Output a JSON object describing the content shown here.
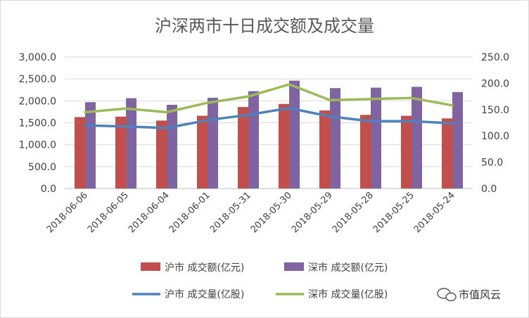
{
  "chart_data": {
    "type": "bar",
    "title": "沪深两市十日成交额及成交量",
    "categories": [
      "2018-06-06",
      "2018-06-05",
      "2018-06-04",
      "2018-06-01",
      "2018-05-31",
      "2018-05-30",
      "2018-05-29",
      "2018-05-28",
      "2018-05-25",
      "2018-05-24"
    ],
    "y_left": {
      "min": 0,
      "max": 3000,
      "step": 500,
      "ticks": [
        "0.0",
        "500.0",
        "1,000.0",
        "1,500.0",
        "2,000.0",
        "2,500.0",
        "3,000.0"
      ]
    },
    "y_right": {
      "min": 0,
      "max": 250,
      "step": 50,
      "ticks": [
        "0.0",
        "50.0",
        "100.0",
        "150.0",
        "200.0",
        "250.0"
      ]
    },
    "grid": true,
    "legend_position": "bottom",
    "series": [
      {
        "name": "沪市 成交额(亿元)",
        "kind": "bar",
        "axis": "left",
        "color": "#C0504D",
        "values": [
          1630,
          1640,
          1550,
          1660,
          1860,
          1930,
          1780,
          1680,
          1660,
          1600
        ]
      },
      {
        "name": "深市 成交额(亿元)",
        "kind": "bar",
        "axis": "left",
        "color": "#8064A2",
        "values": [
          1970,
          2060,
          1910,
          2070,
          2220,
          2460,
          2290,
          2300,
          2320,
          2200
        ]
      },
      {
        "name": "沪市 成交量(亿股)",
        "kind": "line",
        "axis": "right",
        "color": "#4F81BD",
        "values": [
          120,
          118,
          115,
          130,
          140,
          153,
          137,
          128,
          128,
          124
        ]
      },
      {
        "name": "深市 成交量(亿股)",
        "kind": "line",
        "axis": "right",
        "color": "#9BBB59",
        "values": [
          145,
          152,
          145,
          163,
          175,
          198,
          168,
          170,
          172,
          158
        ]
      }
    ]
  },
  "watermark": {
    "text": "市值风云",
    "icon": "wechat-icon"
  }
}
